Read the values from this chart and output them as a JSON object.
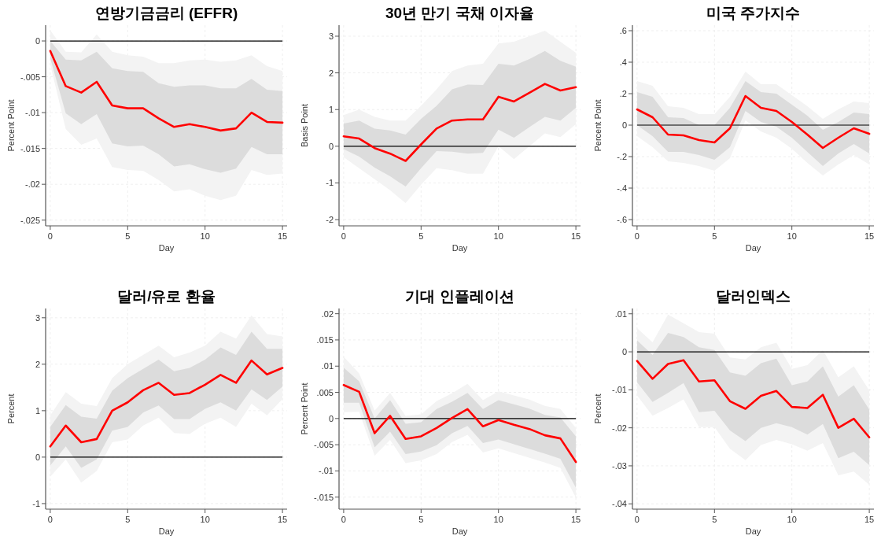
{
  "chart_data": [
    {
      "type": "line",
      "title": "연방기금금리 (EFFR)",
      "xlabel": "Day",
      "ylabel": "Percent Point",
      "x": [
        0,
        1,
        2,
        3,
        4,
        5,
        6,
        7,
        8,
        9,
        10,
        11,
        12,
        13,
        14,
        15
      ],
      "xlim": [
        -0.3,
        15.3
      ],
      "xticks": [
        0,
        5,
        10,
        15
      ],
      "ylim": [
        -0.0258,
        0.0022
      ],
      "yticks": [
        {
          "value": -0.025,
          "label": "-.025"
        },
        {
          "value": -0.02,
          "label": "-.02"
        },
        {
          "value": -0.015,
          "label": "-.015"
        },
        {
          "value": -0.01,
          "label": "-.01"
        },
        {
          "value": -0.005,
          "label": "-.005"
        },
        0
      ],
      "grid": true,
      "ref_lines": [
        {
          "axis": "y",
          "value": 0,
          "color": "#000000"
        }
      ],
      "series": [
        {
          "type": "line",
          "color": "#f3f3f3",
          "values": [
            null,
            null,
            null,
            null,
            null,
            null,
            null,
            null,
            null,
            null,
            null,
            null,
            null,
            null,
            null,
            null
          ],
          "lower": [
            -0.0033,
            -0.0123,
            -0.0145,
            -0.0136,
            -0.0176,
            -0.018,
            -0.0181,
            -0.0194,
            -0.021,
            -0.0207,
            -0.0216,
            -0.0222,
            -0.0216,
            -0.018,
            -0.0187,
            -0.0185
          ],
          "upper": [
            0.0015,
            -0.0015,
            -0.0016,
            0.0009,
            -0.0015,
            -0.002,
            -0.0022,
            -0.0031,
            -0.0031,
            -0.0027,
            -0.0026,
            -0.0029,
            -0.0027,
            -0.002,
            -0.0035,
            -0.0042
          ]
        },
        {
          "type": "line",
          "color": "#dcdcdc",
          "values": [
            null,
            null,
            null,
            null,
            null,
            null,
            null,
            null,
            null,
            null,
            null,
            null,
            null,
            null,
            null,
            null
          ],
          "lower": [
            -0.0024,
            -0.0101,
            -0.0116,
            -0.0102,
            -0.0143,
            -0.0147,
            -0.0146,
            -0.0158,
            -0.0175,
            -0.0172,
            -0.0179,
            -0.0184,
            -0.0178,
            -0.0148,
            -0.0158,
            -0.0158
          ],
          "upper": [
            0.0,
            -0.0026,
            -0.0027,
            -0.0015,
            -0.0038,
            -0.0042,
            -0.0043,
            -0.0059,
            -0.0064,
            -0.0062,
            -0.0062,
            -0.0066,
            -0.0066,
            -0.0053,
            -0.0068,
            -0.007
          ]
        },
        {
          "type": "line",
          "color": "#ff0000",
          "values": [
            -0.0014,
            -0.0063,
            -0.0072,
            -0.0057,
            -0.009,
            -0.0094,
            -0.0094,
            -0.0108,
            -0.012,
            -0.0116,
            -0.012,
            -0.0125,
            -0.0122,
            -0.01,
            -0.0113,
            -0.0114
          ]
        }
      ]
    },
    {
      "type": "line",
      "title": "30년 만기 국채 이자율",
      "xlabel": "Day",
      "ylabel": "Basis Point",
      "x": [
        0,
        1,
        2,
        3,
        4,
        5,
        6,
        7,
        8,
        9,
        10,
        11,
        12,
        13,
        14,
        15
      ],
      "xlim": [
        -0.3,
        15.3
      ],
      "xticks": [
        0,
        5,
        10,
        15
      ],
      "ylim": [
        -2.17,
        3.3
      ],
      "yticks": [
        -2,
        -1,
        0,
        1,
        2,
        3
      ],
      "grid": true,
      "ref_lines": [
        {
          "axis": "y",
          "value": 0,
          "color": "#000000"
        }
      ],
      "series": [
        {
          "type": "line",
          "color": "#f3f3f3",
          "values": [
            null,
            null,
            null,
            null,
            null,
            null,
            null,
            null,
            null,
            null,
            null,
            null,
            null,
            null,
            null,
            null
          ],
          "lower": [
            -0.3,
            -0.6,
            -0.9,
            -1.2,
            -1.55,
            -1.05,
            -0.6,
            -0.65,
            -0.75,
            -0.75,
            0.0,
            -0.35,
            0.0,
            0.35,
            0.25,
            0.6
          ],
          "upper": [
            0.85,
            1.0,
            0.8,
            0.7,
            0.7,
            1.1,
            1.55,
            2.05,
            2.2,
            2.25,
            2.8,
            2.85,
            3.0,
            3.15,
            2.85,
            2.55
          ]
        },
        {
          "type": "line",
          "color": "#dcdcdc",
          "values": [
            null,
            null,
            null,
            null,
            null,
            null,
            null,
            null,
            null,
            null,
            null,
            null,
            null,
            null,
            null,
            null
          ],
          "lower": [
            -0.08,
            -0.28,
            -0.58,
            -0.82,
            -1.1,
            -0.6,
            -0.13,
            -0.15,
            -0.2,
            -0.18,
            0.45,
            0.23,
            0.52,
            0.8,
            0.7,
            1.05
          ],
          "upper": [
            0.62,
            0.7,
            0.48,
            0.43,
            0.32,
            0.75,
            1.1,
            1.55,
            1.68,
            1.67,
            2.25,
            2.2,
            2.38,
            2.6,
            2.33,
            2.17
          ]
        },
        {
          "type": "line",
          "color": "#ff0000",
          "values": [
            0.27,
            0.21,
            -0.05,
            -0.2,
            -0.4,
            0.05,
            0.48,
            0.7,
            0.73,
            0.73,
            1.35,
            1.22,
            1.46,
            1.7,
            1.52,
            1.61
          ]
        }
      ]
    },
    {
      "type": "line",
      "title": "미국 주가지수",
      "xlabel": "Day",
      "ylabel": "Percent Point",
      "x": [
        0,
        1,
        2,
        3,
        4,
        5,
        6,
        7,
        8,
        9,
        10,
        11,
        12,
        13,
        14,
        15
      ],
      "xlim": [
        -0.3,
        15.3
      ],
      "xticks": [
        0,
        5,
        10,
        15
      ],
      "ylim": [
        -0.64,
        0.635
      ],
      "yticks": [
        {
          "value": -0.6,
          "label": "-.6"
        },
        {
          "value": -0.4,
          "label": "-.4"
        },
        {
          "value": -0.2,
          "label": "-.2"
        },
        0,
        {
          "value": 0.2,
          "label": ".2"
        },
        {
          "value": 0.4,
          "label": ".4"
        },
        {
          "value": 0.6,
          "label": ".6"
        }
      ],
      "grid": true,
      "ref_lines": [
        {
          "axis": "y",
          "value": 0,
          "color": "#000000"
        }
      ],
      "series": [
        {
          "type": "line",
          "color": "#f3f3f3",
          "values": [
            null,
            null,
            null,
            null,
            null,
            null,
            null,
            null,
            null,
            null,
            null,
            null,
            null,
            null,
            null,
            null
          ],
          "lower": [
            -0.07,
            -0.14,
            -0.23,
            -0.24,
            -0.26,
            -0.29,
            -0.21,
            0.03,
            -0.04,
            -0.08,
            -0.15,
            -0.24,
            -0.32,
            -0.25,
            -0.19,
            -0.25
          ],
          "upper": [
            0.28,
            0.25,
            0.12,
            0.11,
            0.07,
            0.07,
            0.18,
            0.34,
            0.26,
            0.26,
            0.19,
            0.12,
            0.04,
            0.1,
            0.15,
            0.14
          ]
        },
        {
          "type": "line",
          "color": "#dcdcdc",
          "values": [
            null,
            null,
            null,
            null,
            null,
            null,
            null,
            null,
            null,
            null,
            null,
            null,
            null,
            null,
            null,
            null
          ],
          "lower": [
            0.0,
            -0.07,
            -0.17,
            -0.17,
            -0.19,
            -0.22,
            -0.14,
            0.09,
            0.02,
            -0.01,
            -0.08,
            -0.17,
            -0.26,
            -0.18,
            -0.12,
            -0.18
          ],
          "upper": [
            0.21,
            0.18,
            0.05,
            0.045,
            0.0,
            0.0,
            0.11,
            0.28,
            0.21,
            0.2,
            0.13,
            0.06,
            -0.03,
            0.02,
            0.08,
            0.07
          ]
        },
        {
          "type": "line",
          "color": "#ff0000",
          "values": [
            0.1,
            0.05,
            -0.06,
            -0.065,
            -0.095,
            -0.11,
            -0.02,
            0.185,
            0.11,
            0.09,
            0.02,
            -0.06,
            -0.145,
            -0.08,
            -0.02,
            -0.055
          ]
        }
      ]
    },
    {
      "type": "line",
      "title": "달러/유로 환율",
      "xlabel": "Day",
      "ylabel": "Percent",
      "x": [
        0,
        1,
        2,
        3,
        4,
        5,
        6,
        7,
        8,
        9,
        10,
        11,
        12,
        13,
        14,
        15
      ],
      "xlim": [
        -0.3,
        15.3
      ],
      "xticks": [
        0,
        5,
        10,
        15
      ],
      "ylim": [
        -1.12,
        3.2
      ],
      "yticks": [
        -1,
        0,
        1,
        2,
        3
      ],
      "grid": true,
      "ref_lines": [
        {
          "axis": "y",
          "value": 0,
          "color": "#000000"
        }
      ],
      "series": [
        {
          "type": "line",
          "color": "#f3f3f3",
          "values": [
            null,
            null,
            null,
            null,
            null,
            null,
            null,
            null,
            null,
            null,
            null,
            null,
            null,
            null,
            null,
            null
          ],
          "lower": [
            -0.42,
            -0.05,
            -0.55,
            -0.3,
            0.32,
            0.38,
            0.68,
            0.85,
            0.52,
            0.5,
            0.72,
            0.85,
            0.65,
            1.15,
            0.9,
            1.25
          ],
          "upper": [
            0.9,
            1.4,
            1.15,
            1.1,
            1.7,
            2.0,
            2.2,
            2.4,
            2.15,
            2.25,
            2.4,
            2.7,
            2.55,
            3.05,
            2.65,
            2.6
          ]
        },
        {
          "type": "line",
          "color": "#dcdcdc",
          "values": [
            null,
            null,
            null,
            null,
            null,
            null,
            null,
            null,
            null,
            null,
            null,
            null,
            null,
            null,
            null,
            null
          ],
          "lower": [
            -0.18,
            0.23,
            -0.23,
            -0.05,
            0.57,
            0.65,
            0.96,
            1.11,
            0.82,
            0.82,
            1.04,
            1.18,
            1.0,
            1.46,
            1.23,
            1.52
          ],
          "upper": [
            0.65,
            1.12,
            0.87,
            0.83,
            1.43,
            1.7,
            1.9,
            2.1,
            1.85,
            1.92,
            2.1,
            2.36,
            2.2,
            2.7,
            2.33,
            2.33
          ]
        },
        {
          "type": "line",
          "color": "#ff0000",
          "values": [
            0.23,
            0.68,
            0.32,
            0.39,
            1.0,
            1.18,
            1.44,
            1.6,
            1.34,
            1.38,
            1.56,
            1.77,
            1.6,
            2.08,
            1.78,
            1.92
          ]
        }
      ]
    },
    {
      "type": "line",
      "title": "기대 인플레이션",
      "xlabel": "Day",
      "ylabel": "Percent Point",
      "x": [
        0,
        1,
        2,
        3,
        4,
        5,
        6,
        7,
        8,
        9,
        10,
        11,
        12,
        13,
        14,
        15
      ],
      "xlim": [
        -0.3,
        15.3
      ],
      "xticks": [
        0,
        5,
        10,
        15
      ],
      "ylim": [
        -0.0173,
        0.021
      ],
      "yticks": [
        {
          "value": -0.015,
          "label": "-.015"
        },
        {
          "value": -0.01,
          "label": "-.01"
        },
        {
          "value": -0.005,
          "label": "-.005"
        },
        0,
        {
          "value": 0.005,
          "label": ".005"
        },
        {
          "value": 0.01,
          "label": ".01"
        },
        {
          "value": 0.015,
          "label": ".015"
        },
        {
          "value": 0.02,
          "label": ".02"
        }
      ],
      "grid": true,
      "ref_lines": [
        {
          "axis": "y",
          "value": 0,
          "color": "#000000"
        }
      ],
      "series": [
        {
          "type": "line",
          "color": "#f3f3f3",
          "values": [
            null,
            null,
            null,
            null,
            null,
            null,
            null,
            null,
            null,
            null,
            null,
            null,
            null,
            null,
            null,
            null
          ],
          "lower": [
            0.0012,
            0.0013,
            -0.0071,
            -0.0041,
            -0.0085,
            -0.008,
            -0.0068,
            -0.0045,
            -0.0031,
            -0.0065,
            -0.0057,
            -0.0066,
            -0.0075,
            -0.0084,
            -0.0094,
            -0.0151
          ],
          "upper": [
            0.0118,
            0.0086,
            0.0015,
            0.0049,
            0.0005,
            0.0008,
            0.0033,
            0.0048,
            0.0066,
            0.0035,
            0.0052,
            0.0044,
            0.0036,
            0.0024,
            0.0018,
            -0.0018
          ]
        },
        {
          "type": "line",
          "color": "#dcdcdc",
          "values": [
            null,
            null,
            null,
            null,
            null,
            null,
            null,
            null,
            null,
            null,
            null,
            null,
            null,
            null,
            null,
            null
          ],
          "lower": [
            0.003,
            0.003,
            -0.0055,
            -0.0025,
            -0.0068,
            -0.0063,
            -0.0051,
            -0.0028,
            -0.0014,
            -0.0047,
            -0.004,
            -0.0049,
            -0.0058,
            -0.0067,
            -0.0077,
            -0.0132
          ],
          "upper": [
            0.0097,
            0.0071,
            0.0,
            0.0035,
            -0.001,
            -0.0007,
            0.0018,
            0.0032,
            0.0049,
            0.0018,
            0.0035,
            0.0027,
            0.0019,
            0.0007,
            0.0002,
            -0.0034
          ]
        },
        {
          "type": "line",
          "color": "#ff0000",
          "values": [
            0.0064,
            0.0051,
            -0.0028,
            0.0005,
            -0.0039,
            -0.0034,
            -0.0018,
            0.0001,
            0.0018,
            -0.0015,
            -0.0003,
            -0.0012,
            -0.002,
            -0.0032,
            -0.0038,
            -0.0083
          ]
        }
      ]
    },
    {
      "type": "line",
      "title": "달러인덱스",
      "xlabel": "Day",
      "ylabel": "Percent",
      "x": [
        0,
        1,
        2,
        3,
        4,
        5,
        6,
        7,
        8,
        9,
        10,
        11,
        12,
        13,
        14,
        15
      ],
      "xlim": [
        -0.3,
        15.3
      ],
      "xticks": [
        0,
        5,
        10,
        15
      ],
      "ylim": [
        -0.0414,
        0.0114
      ],
      "yticks": [
        {
          "value": -0.04,
          "label": "-.04"
        },
        {
          "value": -0.03,
          "label": "-.03"
        },
        {
          "value": -0.02,
          "label": "-.02"
        },
        {
          "value": -0.01,
          "label": "-.01"
        },
        0,
        {
          "value": 0.01,
          "label": ".01"
        }
      ],
      "grid": true,
      "ref_lines": [
        {
          "axis": "y",
          "value": 0,
          "color": "#000000"
        }
      ],
      "series": [
        {
          "type": "line",
          "color": "#f3f3f3",
          "values": [
            null,
            null,
            null,
            null,
            null,
            null,
            null,
            null,
            null,
            null,
            null,
            null,
            null,
            null,
            null,
            null
          ],
          "lower": [
            -0.0115,
            -0.0168,
            -0.0148,
            -0.0125,
            -0.0198,
            -0.0198,
            -0.0255,
            -0.0285,
            -0.0245,
            -0.0232,
            -0.0243,
            -0.026,
            -0.024,
            -0.0325,
            -0.0315,
            -0.035
          ],
          "upper": [
            0.0062,
            0.0025,
            0.0098,
            0.0075,
            0.0052,
            0.0048,
            -0.0015,
            -0.002,
            0.0012,
            0.0024,
            -0.0045,
            -0.0035,
            0.0005,
            -0.0067,
            -0.0038,
            -0.0102
          ]
        },
        {
          "type": "line",
          "color": "#dcdcdc",
          "values": [
            null,
            null,
            null,
            null,
            null,
            null,
            null,
            null,
            null,
            null,
            null,
            null,
            null,
            null,
            null,
            null
          ],
          "lower": [
            -0.008,
            -0.0132,
            -0.0108,
            -0.0082,
            -0.0159,
            -0.0155,
            -0.0207,
            -0.0235,
            -0.02,
            -0.0188,
            -0.0198,
            -0.0218,
            -0.019,
            -0.028,
            -0.0263,
            -0.0298
          ],
          "upper": [
            0.003,
            -0.0008,
            0.005,
            0.0039,
            0.0012,
            0.0005,
            -0.0054,
            -0.0063,
            -0.003,
            -0.0018,
            -0.0088,
            -0.0078,
            -0.0038,
            -0.0118,
            -0.0088,
            -0.0152
          ]
        },
        {
          "type": "line",
          "color": "#ff0000",
          "values": [
            -0.0024,
            -0.0071,
            -0.0032,
            -0.0022,
            -0.0078,
            -0.0075,
            -0.013,
            -0.015,
            -0.0116,
            -0.0103,
            -0.0145,
            -0.0148,
            -0.0113,
            -0.02,
            -0.0176,
            -0.0225
          ]
        }
      ]
    }
  ]
}
